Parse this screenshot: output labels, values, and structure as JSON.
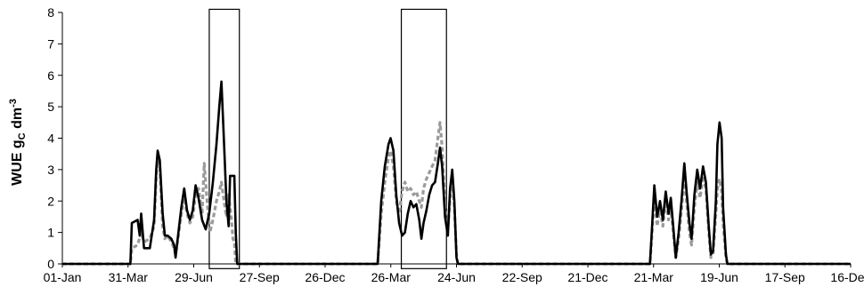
{
  "chart_data": {
    "type": "line",
    "ylabel": "WUE  gc dm-3",
    "ylabel_parts": {
      "main": "WUE  g",
      "sub": "C",
      "mid": " dm",
      "sup": "-3"
    },
    "ylim": [
      0,
      8
    ],
    "yticks": [
      "0",
      "1",
      "2",
      "3",
      "4",
      "5",
      "6",
      "7",
      "8"
    ],
    "xticks": [
      "01-Jan",
      "31-Mar",
      "29-Jun",
      "27-Sep",
      "26-Dec",
      "26-Mar",
      "24-Jun",
      "22-Sep",
      "21-Dec",
      "21-Mar",
      "19-Jun",
      "17-Sep",
      "16-Dec"
    ],
    "x_unit": "days from 01-Jan",
    "xlim": [
      0,
      1100
    ],
    "grid": false,
    "legend": "none",
    "series": [
      {
        "style": "solid-black",
        "color": "#000000",
        "points": [
          [
            0,
            0
          ],
          [
            95,
            0
          ],
          [
            97,
            1.3
          ],
          [
            105,
            1.4
          ],
          [
            108,
            0.9
          ],
          [
            110,
            1.6
          ],
          [
            114,
            0.5
          ],
          [
            122,
            0.5
          ],
          [
            128,
            1.4
          ],
          [
            131,
            3.0
          ],
          [
            133,
            3.6
          ],
          [
            136,
            3.3
          ],
          [
            140,
            1.6
          ],
          [
            143,
            0.9
          ],
          [
            147,
            0.9
          ],
          [
            152,
            0.8
          ],
          [
            156,
            0.6
          ],
          [
            158,
            0.2
          ],
          [
            162,
            1.0
          ],
          [
            166,
            1.8
          ],
          [
            170,
            2.4
          ],
          [
            174,
            1.7
          ],
          [
            178,
            1.4
          ],
          [
            182,
            1.7
          ],
          [
            186,
            2.5
          ],
          [
            190,
            2.1
          ],
          [
            195,
            1.4
          ],
          [
            200,
            1.1
          ],
          [
            205,
            1.6
          ],
          [
            210,
            2.6
          ],
          [
            215,
            3.8
          ],
          [
            219,
            5.0
          ],
          [
            222,
            5.8
          ],
          [
            225,
            4.2
          ],
          [
            229,
            2.0
          ],
          [
            232,
            1.2
          ],
          [
            234,
            2.8
          ],
          [
            240,
            2.8
          ],
          [
            242,
            1.0
          ],
          [
            244,
            0
          ],
          [
            440,
            0
          ],
          [
            445,
            2.0
          ],
          [
            450,
            3.1
          ],
          [
            455,
            3.8
          ],
          [
            458,
            4.0
          ],
          [
            462,
            3.6
          ],
          [
            466,
            2.2
          ],
          [
            470,
            1.3
          ],
          [
            474,
            0.9
          ],
          [
            478,
            1.0
          ],
          [
            482,
            1.6
          ],
          [
            486,
            2.0
          ],
          [
            490,
            1.8
          ],
          [
            494,
            1.9
          ],
          [
            498,
            1.4
          ],
          [
            501,
            0.8
          ],
          [
            504,
            1.3
          ],
          [
            508,
            1.7
          ],
          [
            512,
            2.2
          ],
          [
            516,
            2.5
          ],
          [
            520,
            2.6
          ],
          [
            524,
            3.2
          ],
          [
            527,
            3.7
          ],
          [
            530,
            3.1
          ],
          [
            534,
            1.5
          ],
          [
            538,
            0.9
          ],
          [
            541,
            2.4
          ],
          [
            544,
            3.0
          ],
          [
            547,
            2.0
          ],
          [
            550,
            0.2
          ],
          [
            552,
            0
          ],
          [
            820,
            0
          ],
          [
            823,
            1.2
          ],
          [
            826,
            2.5
          ],
          [
            830,
            1.5
          ],
          [
            834,
            2.0
          ],
          [
            838,
            1.4
          ],
          [
            842,
            2.3
          ],
          [
            846,
            1.6
          ],
          [
            849,
            2.1
          ],
          [
            852,
            1.3
          ],
          [
            856,
            0.2
          ],
          [
            860,
            1.0
          ],
          [
            864,
            2.0
          ],
          [
            868,
            3.2
          ],
          [
            871,
            2.3
          ],
          [
            875,
            1.3
          ],
          [
            878,
            0.8
          ],
          [
            882,
            2.2
          ],
          [
            886,
            3.0
          ],
          [
            890,
            2.4
          ],
          [
            894,
            3.1
          ],
          [
            898,
            2.6
          ],
          [
            902,
            1.2
          ],
          [
            905,
            0.3
          ],
          [
            908,
            0.4
          ],
          [
            912,
            2.0
          ],
          [
            914,
            3.8
          ],
          [
            917,
            4.5
          ],
          [
            920,
            4.0
          ],
          [
            922,
            1.8
          ],
          [
            926,
            0.3
          ],
          [
            928,
            0
          ],
          [
            1100,
            0
          ]
        ]
      },
      {
        "style": "dashed-grey",
        "color": "#9b9b9b",
        "points": [
          [
            0,
            0
          ],
          [
            95,
            0
          ],
          [
            97,
            0.5
          ],
          [
            105,
            0.6
          ],
          [
            110,
            1.0
          ],
          [
            114,
            0.7
          ],
          [
            122,
            0.8
          ],
          [
            128,
            1.2
          ],
          [
            131,
            2.8
          ],
          [
            133,
            3.3
          ],
          [
            136,
            3.1
          ],
          [
            140,
            1.2
          ],
          [
            143,
            0.8
          ],
          [
            147,
            0.9
          ],
          [
            152,
            0.7
          ],
          [
            156,
            0.5
          ],
          [
            158,
            0.3
          ],
          [
            162,
            0.9
          ],
          [
            166,
            1.6
          ],
          [
            170,
            2.1
          ],
          [
            174,
            1.6
          ],
          [
            178,
            1.3
          ],
          [
            182,
            1.5
          ],
          [
            186,
            2.2
          ],
          [
            190,
            2.4
          ],
          [
            195,
            1.6
          ],
          [
            198,
            3.2
          ],
          [
            202,
            2.0
          ],
          [
            206,
            1.0
          ],
          [
            210,
            1.4
          ],
          [
            215,
            2.0
          ],
          [
            219,
            2.3
          ],
          [
            222,
            2.6
          ],
          [
            225,
            2.1
          ],
          [
            229,
            1.5
          ],
          [
            232,
            2.2
          ],
          [
            236,
            1.4
          ],
          [
            238,
            0.8
          ],
          [
            240,
            0.7
          ],
          [
            242,
            0
          ],
          [
            440,
            0
          ],
          [
            445,
            1.6
          ],
          [
            450,
            2.6
          ],
          [
            455,
            3.4
          ],
          [
            458,
            3.6
          ],
          [
            462,
            3.1
          ],
          [
            466,
            2.0
          ],
          [
            470,
            1.6
          ],
          [
            474,
            2.3
          ],
          [
            478,
            2.6
          ],
          [
            482,
            2.3
          ],
          [
            486,
            2.4
          ],
          [
            490,
            2.2
          ],
          [
            494,
            2.3
          ],
          [
            498,
            2.0
          ],
          [
            501,
            1.8
          ],
          [
            504,
            2.4
          ],
          [
            508,
            2.7
          ],
          [
            512,
            2.9
          ],
          [
            516,
            3.1
          ],
          [
            520,
            3.3
          ],
          [
            524,
            4.0
          ],
          [
            527,
            4.5
          ],
          [
            530,
            3.7
          ],
          [
            534,
            1.8
          ],
          [
            538,
            1.1
          ],
          [
            541,
            2.1
          ],
          [
            544,
            2.7
          ],
          [
            547,
            1.8
          ],
          [
            550,
            0.3
          ],
          [
            552,
            0
          ],
          [
            820,
            0
          ],
          [
            823,
            1.0
          ],
          [
            826,
            2.2
          ],
          [
            830,
            1.2
          ],
          [
            834,
            1.8
          ],
          [
            838,
            1.2
          ],
          [
            842,
            2.1
          ],
          [
            846,
            1.4
          ],
          [
            849,
            1.8
          ],
          [
            852,
            1.1
          ],
          [
            856,
            0.2
          ],
          [
            860,
            0.8
          ],
          [
            864,
            1.7
          ],
          [
            868,
            2.8
          ],
          [
            871,
            2.0
          ],
          [
            875,
            1.0
          ],
          [
            878,
            0.6
          ],
          [
            882,
            1.8
          ],
          [
            886,
            2.6
          ],
          [
            890,
            2.1
          ],
          [
            894,
            2.8
          ],
          [
            898,
            2.4
          ],
          [
            902,
            1.0
          ],
          [
            905,
            0.2
          ],
          [
            908,
            0.3
          ],
          [
            912,
            1.6
          ],
          [
            914,
            2.4
          ],
          [
            917,
            2.7
          ],
          [
            920,
            2.3
          ],
          [
            922,
            1.3
          ],
          [
            926,
            0.2
          ],
          [
            928,
            0
          ],
          [
            1100,
            0
          ]
        ]
      }
    ],
    "highlight_boxes": [
      {
        "x": [
          205,
          247
        ],
        "y": [
          -0.15,
          8.1
        ]
      },
      {
        "x": [
          473,
          536
        ],
        "y": [
          -0.15,
          8.1
        ]
      }
    ]
  }
}
